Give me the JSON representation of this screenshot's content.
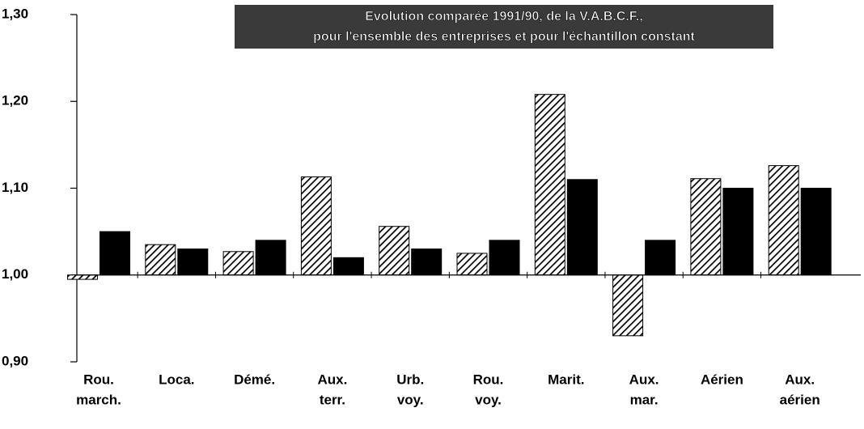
{
  "chart_data": {
    "type": "bar",
    "title": "Evolution comparée 1991/90, de la V.A.B.C.F.,",
    "subtitle": "pour l'ensemble des entreprises et pour l'échantillon constant",
    "categories": [
      [
        "Rou.",
        "march."
      ],
      [
        "Loca."
      ],
      [
        "Démé."
      ],
      [
        "Aux.",
        "terr."
      ],
      [
        "Urb.",
        "voy."
      ],
      [
        "Rou.",
        "voy."
      ],
      [
        "Marit."
      ],
      [
        "Aux.",
        "mar."
      ],
      [
        "Aérien"
      ],
      [
        "Aux.",
        "aérien"
      ]
    ],
    "series": [
      {
        "color": "#000000",
        "pattern": "hatch",
        "values": [
          0.995,
          1.035,
          1.027,
          1.113,
          1.056,
          1.025,
          1.208,
          0.93,
          1.111,
          1.126
        ]
      },
      {
        "color": "#000000",
        "values": [
          1.05,
          1.03,
          1.04,
          1.02,
          1.03,
          1.04,
          1.11,
          1.04,
          1.1,
          1.1
        ]
      }
    ],
    "baseline": 1.0,
    "ylim": [
      0.9,
      1.3
    ],
    "yticks": [
      {
        "value": 0.9,
        "label": "0,90"
      },
      {
        "value": 1.0,
        "label": "1,00"
      },
      {
        "value": 1.1,
        "label": "1,10"
      },
      {
        "value": 1.2,
        "label": "1,20"
      },
      {
        "value": 1.3,
        "label": "1,30"
      }
    ],
    "grid": false
  }
}
